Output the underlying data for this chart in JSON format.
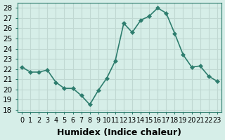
{
  "x": [
    0,
    1,
    2,
    3,
    4,
    5,
    6,
    7,
    8,
    9,
    10,
    11,
    12,
    13,
    14,
    15,
    16,
    17,
    18,
    19,
    20,
    21,
    22,
    23
  ],
  "y": [
    22.2,
    21.7,
    21.7,
    21.9,
    20.7,
    20.1,
    20.1,
    19.4,
    18.5,
    19.9,
    21.1,
    22.8,
    26.5,
    25.6,
    26.8,
    27.2,
    28.0,
    27.5,
    25.5,
    23.4,
    22.2,
    22.3,
    21.3,
    20.8
  ],
  "line_color": "#2e7d6e",
  "marker": "D",
  "marker_size": 3,
  "line_width": 1.2,
  "bg_color": "#d6eee8",
  "grid_color": "#c0d8d2",
  "ylabel_ticks": [
    18,
    19,
    20,
    21,
    22,
    23,
    24,
    25,
    26,
    27,
    28
  ],
  "ylim": [
    17.8,
    28.5
  ],
  "xlim": [
    -0.5,
    23.5
  ],
  "xlabel": "Humidex (Indice chaleur)",
  "xlabel_fontsize": 9,
  "tick_fontsize": 7.5
}
